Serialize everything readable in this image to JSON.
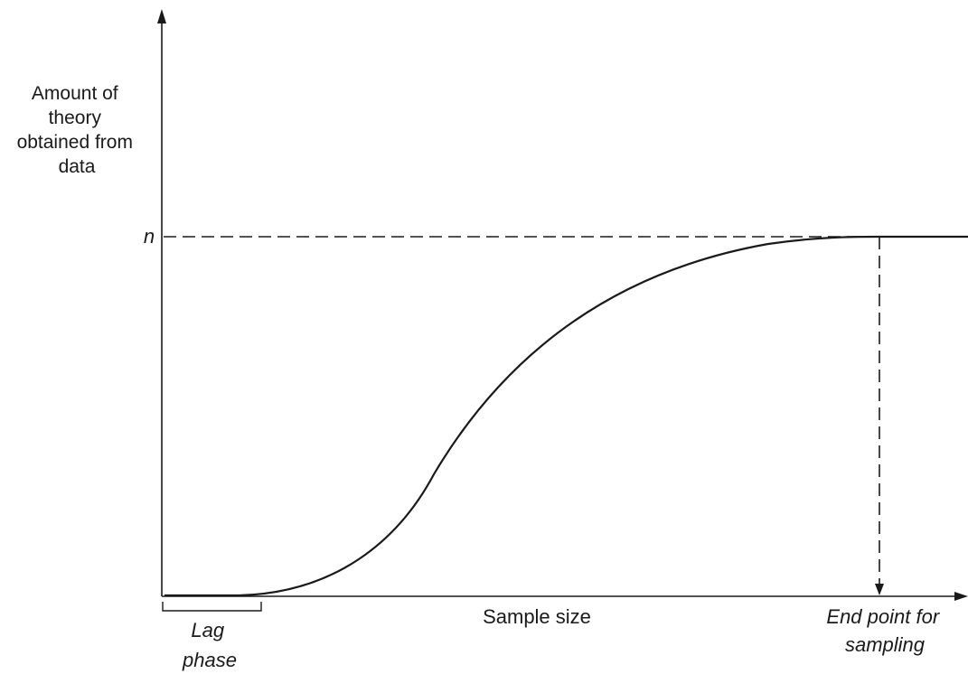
{
  "diagram": {
    "y_axis_label_lines": [
      "Amount of",
      "theory",
      "obtained from",
      "data"
    ],
    "y_level_label": "n",
    "x_axis_label": "Sample size",
    "lag_phase_lines": [
      "Lag",
      "phase"
    ],
    "end_point_lines": [
      "End point for",
      "sampling"
    ]
  },
  "colors": {
    "ink": "#1a1a1a",
    "background": "#ffffff"
  }
}
